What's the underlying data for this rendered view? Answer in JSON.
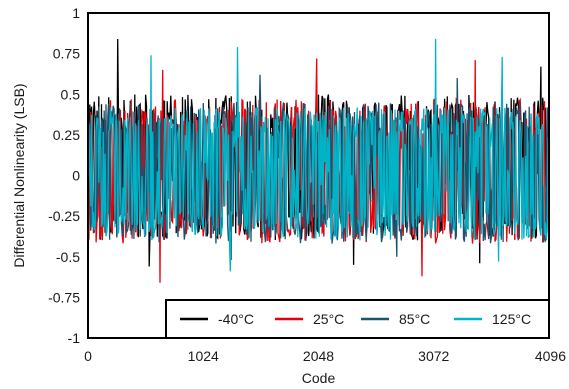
{
  "chart_data": {
    "type": "line",
    "title": "",
    "xlabel": "Code",
    "ylabel": "Differential Nonlinearity (LSB)",
    "xlim": [
      0,
      4096
    ],
    "ylim": [
      -1,
      1
    ],
    "x_ticks": [
      "0",
      "1024",
      "2048",
      "3072",
      "4096"
    ],
    "y_ticks": [
      "1",
      "0.75",
      "0.5",
      "0.25",
      "0",
      "-0.25",
      "-0.5",
      "-0.75",
      "-1"
    ],
    "grid": false,
    "legend_position": "bottom-right",
    "series": [
      {
        "name": "-40°C",
        "color": "#000000",
        "envelope_upper": 0.5,
        "envelope_lower": -0.4,
        "peaks": [
          [
            260,
            0.84
          ],
          [
            4020,
            0.67
          ],
          [
            540,
            -0.56
          ],
          [
            2360,
            -0.55
          ],
          [
            3480,
            -0.54
          ]
        ]
      },
      {
        "name": "25°C",
        "color": "#e8000b",
        "envelope_upper": 0.47,
        "envelope_lower": -0.42,
        "peaks": [
          [
            660,
            0.65
          ],
          [
            2030,
            0.72
          ],
          [
            3440,
            0.71
          ],
          [
            640,
            -0.66
          ],
          [
            2970,
            -0.62
          ]
        ]
      },
      {
        "name": "85°C",
        "color": "#1b5470",
        "envelope_upper": 0.45,
        "envelope_lower": -0.42,
        "peaks": [
          [
            1530,
            0.62
          ],
          [
            3280,
            0.6
          ],
          [
            1270,
            -0.52
          ],
          [
            2740,
            -0.5
          ]
        ]
      },
      {
        "name": "125°C",
        "color": "#00b4c8",
        "envelope_upper": 0.42,
        "envelope_lower": -0.4,
        "peaks": [
          [
            560,
            0.74
          ],
          [
            1330,
            0.79
          ],
          [
            3090,
            0.84
          ],
          [
            3680,
            0.73
          ],
          [
            1260,
            -0.59
          ],
          [
            3650,
            -0.53
          ]
        ]
      }
    ]
  }
}
